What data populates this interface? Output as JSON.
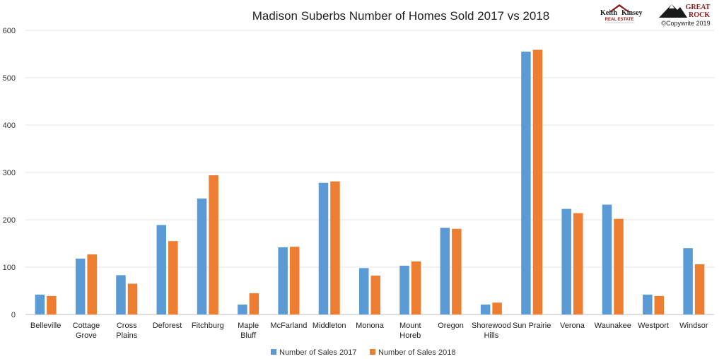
{
  "chart_data": {
    "type": "bar",
    "title": "Madison Suberbs Number of Homes Sold 2017 vs 2018",
    "xlabel": "",
    "ylabel": "",
    "ylim": [
      0,
      600
    ],
    "yticks": [
      0,
      100,
      200,
      300,
      400,
      500,
      600
    ],
    "grid": true,
    "legend_position": "bottom",
    "categories": [
      [
        "Belleville"
      ],
      [
        "Cottage",
        "Grove"
      ],
      [
        "Cross",
        "Plains"
      ],
      [
        "Deforest"
      ],
      [
        "Fitchburg"
      ],
      [
        "Maple",
        "Bluff"
      ],
      [
        "McFarland"
      ],
      [
        "Middleton"
      ],
      [
        "Monona"
      ],
      [
        "Mount",
        "Horeb"
      ],
      [
        "Oregon"
      ],
      [
        "Shorewood",
        "Hills"
      ],
      [
        "Sun Prairie"
      ],
      [
        "Verona"
      ],
      [
        "Waunakee"
      ],
      [
        "Westport"
      ],
      [
        "Windsor"
      ]
    ],
    "series": [
      {
        "name": "Number of Sales 2017",
        "color": "#5b9bd5",
        "values": [
          42,
          118,
          83,
          189,
          245,
          21,
          142,
          278,
          98,
          103,
          183,
          21,
          555,
          223,
          232,
          42,
          140
        ]
      },
      {
        "name": "Number of Sales 2018",
        "color": "#ed7d31",
        "values": [
          39,
          127,
          65,
          155,
          294,
          45,
          143,
          281,
          82,
          112,
          181,
          25,
          559,
          214,
          202,
          39,
          106
        ]
      }
    ]
  },
  "logos": {
    "left": {
      "line1": "Keith",
      "line2": "Kinsey",
      "line3": "REAL ESTATE",
      "icon": "house-roof-icon"
    },
    "right": {
      "line1": "GREAT",
      "line2": "ROCK",
      "icon": "mountain-icon",
      "copyright": "©Copywrite 2019"
    }
  }
}
